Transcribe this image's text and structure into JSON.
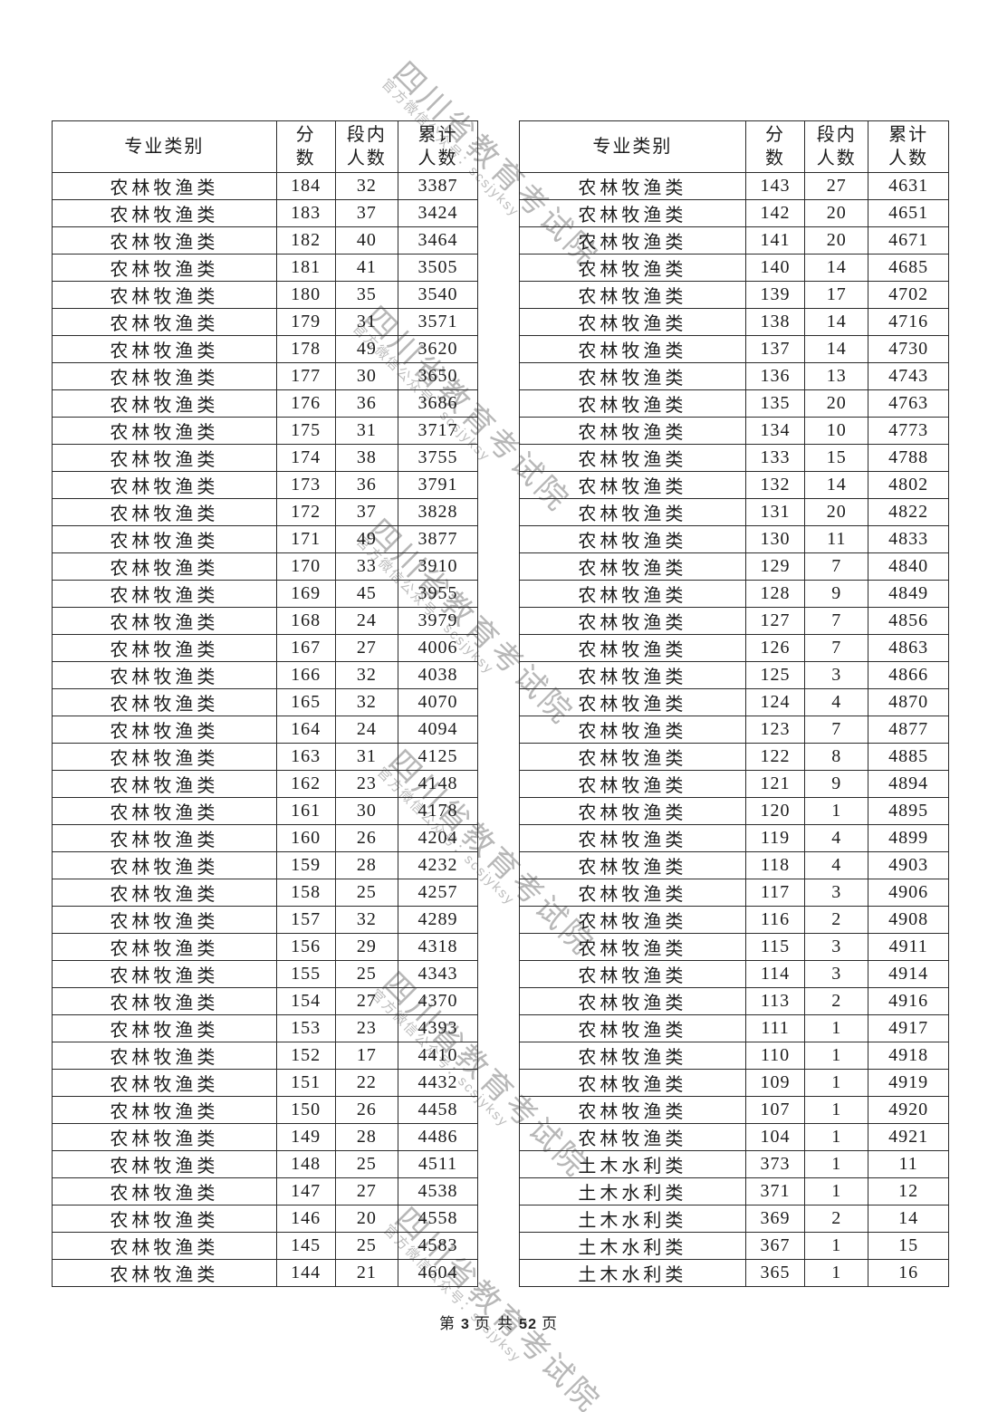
{
  "watermark": {
    "main_text": "四川省教育考试院",
    "sub_text": "官方微信公众号：scsjyksy",
    "color": "#b7b7b7"
  },
  "headers": {
    "category": "专业类别",
    "score": "分\n数",
    "segment_count": "段内\n人数",
    "cumulative_count": "累计\n人数"
  },
  "left_table": {
    "rows": [
      [
        "农林牧渔类",
        184,
        32,
        3387
      ],
      [
        "农林牧渔类",
        183,
        37,
        3424
      ],
      [
        "农林牧渔类",
        182,
        40,
        3464
      ],
      [
        "农林牧渔类",
        181,
        41,
        3505
      ],
      [
        "农林牧渔类",
        180,
        35,
        3540
      ],
      [
        "农林牧渔类",
        179,
        31,
        3571
      ],
      [
        "农林牧渔类",
        178,
        49,
        3620
      ],
      [
        "农林牧渔类",
        177,
        30,
        3650
      ],
      [
        "农林牧渔类",
        176,
        36,
        3686
      ],
      [
        "农林牧渔类",
        175,
        31,
        3717
      ],
      [
        "农林牧渔类",
        174,
        38,
        3755
      ],
      [
        "农林牧渔类",
        173,
        36,
        3791
      ],
      [
        "农林牧渔类",
        172,
        37,
        3828
      ],
      [
        "农林牧渔类",
        171,
        49,
        3877
      ],
      [
        "农林牧渔类",
        170,
        33,
        3910
      ],
      [
        "农林牧渔类",
        169,
        45,
        3955
      ],
      [
        "农林牧渔类",
        168,
        24,
        3979
      ],
      [
        "农林牧渔类",
        167,
        27,
        4006
      ],
      [
        "农林牧渔类",
        166,
        32,
        4038
      ],
      [
        "农林牧渔类",
        165,
        32,
        4070
      ],
      [
        "农林牧渔类",
        164,
        24,
        4094
      ],
      [
        "农林牧渔类",
        163,
        31,
        4125
      ],
      [
        "农林牧渔类",
        162,
        23,
        4148
      ],
      [
        "农林牧渔类",
        161,
        30,
        4178
      ],
      [
        "农林牧渔类",
        160,
        26,
        4204
      ],
      [
        "农林牧渔类",
        159,
        28,
        4232
      ],
      [
        "农林牧渔类",
        158,
        25,
        4257
      ],
      [
        "农林牧渔类",
        157,
        32,
        4289
      ],
      [
        "农林牧渔类",
        156,
        29,
        4318
      ],
      [
        "农林牧渔类",
        155,
        25,
        4343
      ],
      [
        "农林牧渔类",
        154,
        27,
        4370
      ],
      [
        "农林牧渔类",
        153,
        23,
        4393
      ],
      [
        "农林牧渔类",
        152,
        17,
        4410
      ],
      [
        "农林牧渔类",
        151,
        22,
        4432
      ],
      [
        "农林牧渔类",
        150,
        26,
        4458
      ],
      [
        "农林牧渔类",
        149,
        28,
        4486
      ],
      [
        "农林牧渔类",
        148,
        25,
        4511
      ],
      [
        "农林牧渔类",
        147,
        27,
        4538
      ],
      [
        "农林牧渔类",
        146,
        20,
        4558
      ],
      [
        "农林牧渔类",
        145,
        25,
        4583
      ],
      [
        "农林牧渔类",
        144,
        21,
        4604
      ]
    ]
  },
  "right_table": {
    "rows": [
      [
        "农林牧渔类",
        143,
        27,
        4631
      ],
      [
        "农林牧渔类",
        142,
        20,
        4651
      ],
      [
        "农林牧渔类",
        141,
        20,
        4671
      ],
      [
        "农林牧渔类",
        140,
        14,
        4685
      ],
      [
        "农林牧渔类",
        139,
        17,
        4702
      ],
      [
        "农林牧渔类",
        138,
        14,
        4716
      ],
      [
        "农林牧渔类",
        137,
        14,
        4730
      ],
      [
        "农林牧渔类",
        136,
        13,
        4743
      ],
      [
        "农林牧渔类",
        135,
        20,
        4763
      ],
      [
        "农林牧渔类",
        134,
        10,
        4773
      ],
      [
        "农林牧渔类",
        133,
        15,
        4788
      ],
      [
        "农林牧渔类",
        132,
        14,
        4802
      ],
      [
        "农林牧渔类",
        131,
        20,
        4822
      ],
      [
        "农林牧渔类",
        130,
        11,
        4833
      ],
      [
        "农林牧渔类",
        129,
        7,
        4840
      ],
      [
        "农林牧渔类",
        128,
        9,
        4849
      ],
      [
        "农林牧渔类",
        127,
        7,
        4856
      ],
      [
        "农林牧渔类",
        126,
        7,
        4863
      ],
      [
        "农林牧渔类",
        125,
        3,
        4866
      ],
      [
        "农林牧渔类",
        124,
        4,
        4870
      ],
      [
        "农林牧渔类",
        123,
        7,
        4877
      ],
      [
        "农林牧渔类",
        122,
        8,
        4885
      ],
      [
        "农林牧渔类",
        121,
        9,
        4894
      ],
      [
        "农林牧渔类",
        120,
        1,
        4895
      ],
      [
        "农林牧渔类",
        119,
        4,
        4899
      ],
      [
        "农林牧渔类",
        118,
        4,
        4903
      ],
      [
        "农林牧渔类",
        117,
        3,
        4906
      ],
      [
        "农林牧渔类",
        116,
        2,
        4908
      ],
      [
        "农林牧渔类",
        115,
        3,
        4911
      ],
      [
        "农林牧渔类",
        114,
        3,
        4914
      ],
      [
        "农林牧渔类",
        113,
        2,
        4916
      ],
      [
        "农林牧渔类",
        111,
        1,
        4917
      ],
      [
        "农林牧渔类",
        110,
        1,
        4918
      ],
      [
        "农林牧渔类",
        109,
        1,
        4919
      ],
      [
        "农林牧渔类",
        107,
        1,
        4920
      ],
      [
        "农林牧渔类",
        104,
        1,
        4921
      ],
      [
        "土木水利类",
        373,
        1,
        11
      ],
      [
        "土木水利类",
        371,
        1,
        12
      ],
      [
        "土木水利类",
        369,
        2,
        14
      ],
      [
        "土木水利类",
        367,
        1,
        15
      ],
      [
        "土木水利类",
        365,
        1,
        16
      ]
    ]
  },
  "footer": {
    "prefix": "第",
    "page_number": "3",
    "middle": "页 共",
    "total_pages": "52",
    "suffix": "页"
  }
}
